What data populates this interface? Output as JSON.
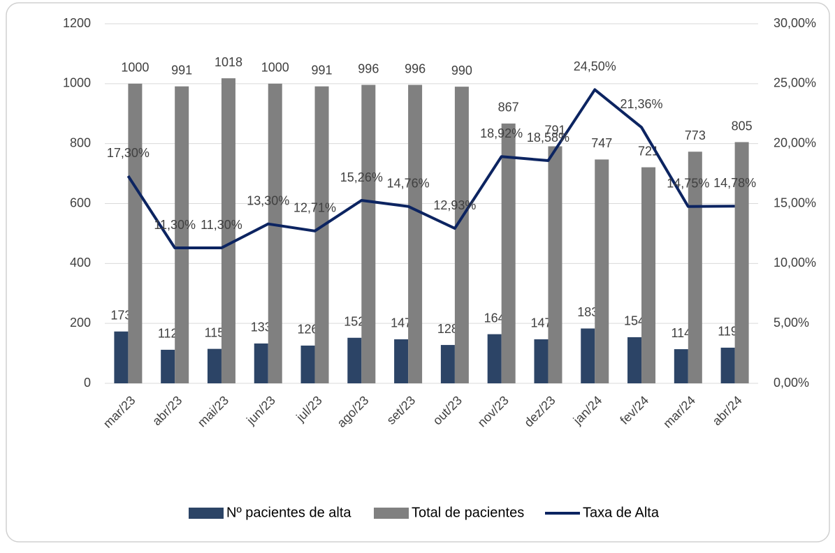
{
  "chart_data": {
    "type": "combo",
    "categories": [
      "mar/23",
      "abr/23",
      "mai/23",
      "jun/23",
      "jul/23",
      "ago/23",
      "set/23",
      "out/23",
      "nov/23",
      "dez/23",
      "jan/24",
      "fev/24",
      "mar/24",
      "abr/24"
    ],
    "series": [
      {
        "name": "Nº pacientes de alta",
        "type": "bar",
        "color": "#2c4466",
        "values": [
          173,
          112,
          115,
          133,
          126,
          152,
          147,
          128,
          164,
          147,
          183,
          154,
          114,
          119
        ]
      },
      {
        "name": "Total de pacientes",
        "type": "bar",
        "color": "#808080",
        "values": [
          1000,
          991,
          1018,
          1000,
          991,
          996,
          996,
          990,
          867,
          791,
          747,
          721,
          773,
          805
        ]
      },
      {
        "name": "Taxa de Alta",
        "type": "line",
        "axis": "y2",
        "color": "#0c2461",
        "values": [
          17.3,
          11.3,
          11.3,
          13.3,
          12.71,
          15.26,
          14.76,
          12.93,
          18.92,
          18.58,
          24.5,
          21.36,
          14.75,
          14.78
        ],
        "value_labels": [
          "17,30%",
          "11,30%",
          "11,30%",
          "13,30%",
          "12,71%",
          "15,26%",
          "14,76%",
          "12,93%",
          "18,92%",
          "18,58%",
          "24,50%",
          "21,36%",
          "14,75%",
          "14,78%"
        ]
      }
    ],
    "ylim": [
      0,
      1200
    ],
    "yticks": [
      0,
      200,
      400,
      600,
      800,
      1000,
      1200
    ],
    "y2lim": [
      0,
      30
    ],
    "y2ticks": [
      {
        "value": 0,
        "label": "0,00%"
      },
      {
        "value": 5,
        "label": "5,00%"
      },
      {
        "value": 10,
        "label": "10,00%"
      },
      {
        "value": 15,
        "label": "15,00%"
      },
      {
        "value": 20,
        "label": "20,00%"
      },
      {
        "value": 25,
        "label": "25,00%"
      },
      {
        "value": 30,
        "label": "30,00%"
      }
    ],
    "grid": true,
    "legend": "bottom"
  }
}
